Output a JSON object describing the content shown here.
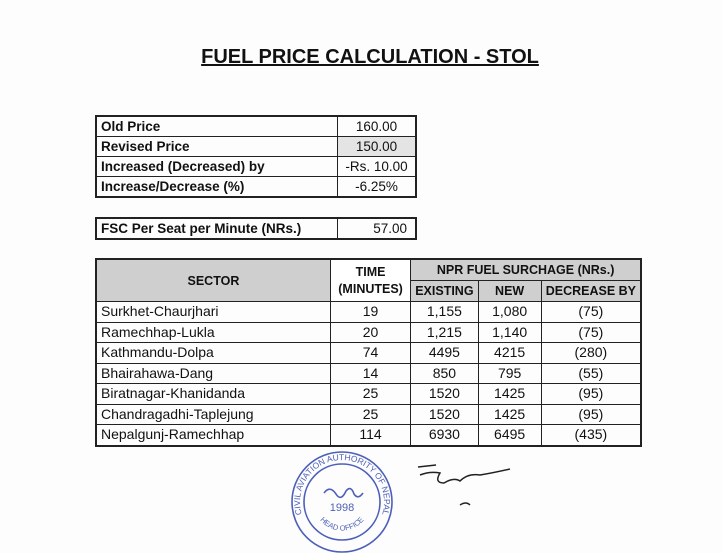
{
  "title": "FUEL PRICE CALCULATION - STOL",
  "price_table": [
    {
      "label": "Old Price",
      "value": "160.00"
    },
    {
      "label": "Revised Price",
      "value": "150.00"
    },
    {
      "label": "Increased (Decreased) by",
      "value": "-Rs. 10.00"
    },
    {
      "label": "Increase/Decrease (%)",
      "value": "-6.25%"
    }
  ],
  "fsc": {
    "label": "FSC Per Seat per Minute (NRs.)",
    "value": "57.00"
  },
  "surcharge_table": {
    "headers": {
      "sector": "SECTOR",
      "time_line1": "TIME",
      "time_line2": "(MINUTES)",
      "group": "NPR FUEL SURCHAGE (NRs.)",
      "existing": "EXISTING",
      "new": "NEW",
      "decrease": "DECREASE BY"
    },
    "rows": [
      {
        "sector": "Surkhet-Chaurjhari",
        "time": "19",
        "existing": "1,155",
        "new": "1,080",
        "decrease": "(75)"
      },
      {
        "sector": "Ramechhap-Lukla",
        "time": "20",
        "existing": "1,215",
        "new": "1,140",
        "decrease": "(75)"
      },
      {
        "sector": "Kathmandu-Dolpa",
        "time": "74",
        "existing": "4495",
        "new": "4215",
        "decrease": "(280)"
      },
      {
        "sector": "Bhairahawa-Dang",
        "time": "14",
        "existing": "850",
        "new": "795",
        "decrease": "(55)"
      },
      {
        "sector": "Biratnagar-Khanidanda",
        "time": "25",
        "existing": "1520",
        "new": "1425",
        "decrease": "(95)"
      },
      {
        "sector": "Chandragadhi-Taplejung",
        "time": "25",
        "existing": "1520",
        "new": "1425",
        "decrease": "(95)"
      },
      {
        "sector": "Nepalgunj-Ramechhap",
        "time": "114",
        "existing": "6930",
        "new": "6495",
        "decrease": "(435)"
      }
    ]
  },
  "stamp": {
    "ring_text": "CIVIL AVIATION AUTHORITY OF NEPAL",
    "year": "1998",
    "bottom_text": "HEAD OFFICE",
    "color": "#3a4fb0"
  }
}
